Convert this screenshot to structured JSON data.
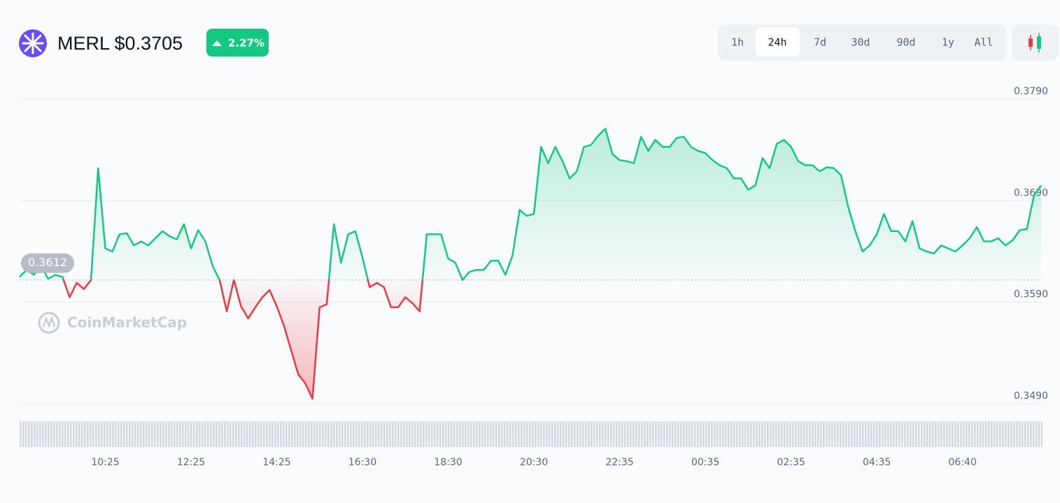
{
  "header": {
    "symbol": "MERL",
    "price": "$0.3705",
    "change": "2.27%"
  },
  "range_buttons": [
    "1h",
    "24h",
    "7d",
    "30d",
    "90d",
    "1y",
    "All"
  ],
  "active_range": "24h",
  "watermark": "CoinMarketCap",
  "chart_data": {
    "type": "line",
    "categories": [
      null,
      null,
      null,
      null,
      null,
      null,
      null,
      null,
      null,
      null,
      null,
      null,
      "10:25",
      null,
      null,
      null,
      null,
      null,
      null,
      null,
      null,
      null,
      null,
      null,
      "12:25",
      null,
      null,
      null,
      null,
      null,
      null,
      null,
      null,
      null,
      null,
      null,
      "14:25",
      null,
      null,
      null,
      null,
      null,
      null,
      null,
      null,
      null,
      null,
      null,
      "16:30",
      null,
      null,
      null,
      null,
      null,
      null,
      null,
      null,
      null,
      null,
      null,
      "18:30",
      null,
      null,
      null,
      null,
      null,
      null,
      null,
      null,
      null,
      null,
      null,
      "20:30",
      null,
      null,
      null,
      null,
      null,
      null,
      null,
      null,
      null,
      null,
      null,
      "22:35",
      null,
      null,
      null,
      null,
      null,
      null,
      null,
      null,
      null,
      null,
      null,
      "00:35",
      null,
      null,
      null,
      null,
      null,
      null,
      null,
      null,
      null,
      null,
      null,
      "02:35",
      null,
      null,
      null,
      null,
      null,
      null,
      null,
      null,
      null,
      null,
      null,
      "04:35",
      null,
      null,
      null,
      null,
      null,
      null,
      null,
      null,
      null,
      null,
      null,
      "06:40",
      null,
      null,
      null,
      null,
      null,
      null,
      null,
      null,
      null,
      null,
      null
    ],
    "values": [
      0.3615,
      0.3622,
      0.3617,
      0.3626,
      0.3613,
      0.3617,
      0.3615,
      0.3595,
      0.3609,
      0.3603,
      0.3612,
      0.3722,
      0.3643,
      0.364,
      0.3657,
      0.3658,
      0.3646,
      0.365,
      0.3646,
      0.3653,
      0.366,
      0.3655,
      0.3652,
      0.3667,
      0.3643,
      0.3661,
      0.365,
      0.3626,
      0.3612,
      0.3581,
      0.3612,
      0.3586,
      0.3574,
      0.3585,
      0.3595,
      0.3602,
      0.3586,
      0.3567,
      0.3543,
      0.3519,
      0.351,
      0.3495,
      0.3585,
      0.3588,
      0.3667,
      0.3629,
      0.3657,
      0.366,
      0.3634,
      0.3605,
      0.3609,
      0.3605,
      0.3585,
      0.3585,
      0.3595,
      0.3589,
      0.3581,
      0.3657,
      0.3657,
      0.3657,
      0.3633,
      0.3629,
      0.3612,
      0.362,
      0.3622,
      0.3622,
      0.3631,
      0.3631,
      0.3617,
      0.3636,
      0.3681,
      0.3675,
      0.3677,
      0.3743,
      0.3727,
      0.3743,
      0.3729,
      0.3712,
      0.3719,
      0.3743,
      0.3745,
      0.3754,
      0.3761,
      0.3736,
      0.373,
      0.3729,
      0.3727,
      0.3753,
      0.3739,
      0.375,
      0.3743,
      0.3743,
      0.3752,
      0.3753,
      0.3743,
      0.3739,
      0.3737,
      0.373,
      0.3725,
      0.3722,
      0.3712,
      0.3712,
      0.3701,
      0.3705,
      0.3732,
      0.3722,
      0.3746,
      0.375,
      0.3743,
      0.3729,
      0.3725,
      0.3725,
      0.3719,
      0.3723,
      0.3722,
      0.3715,
      0.3684,
      0.366,
      0.364,
      0.3646,
      0.3657,
      0.3677,
      0.366,
      0.366,
      0.365,
      0.367,
      0.3643,
      0.364,
      0.3638,
      0.3646,
      0.3643,
      0.364,
      0.3646,
      0.3653,
      0.3664,
      0.365,
      0.365,
      0.3653,
      0.3646,
      0.3651,
      0.3661,
      0.3662,
      0.3695,
      0.3705
    ],
    "baseline": 0.3612,
    "up_color": "#16c784",
    "down_color": "#ea3943",
    "ylim": [
      0.348,
      0.38
    ],
    "yticks": [
      {
        "value": 0.349,
        "label": "0.3490"
      },
      {
        "value": 0.359,
        "label": "0.3590"
      },
      {
        "value": 0.369,
        "label": "0.3690"
      },
      {
        "value": 0.379,
        "label": "0.3790"
      }
    ],
    "grid": true
  }
}
